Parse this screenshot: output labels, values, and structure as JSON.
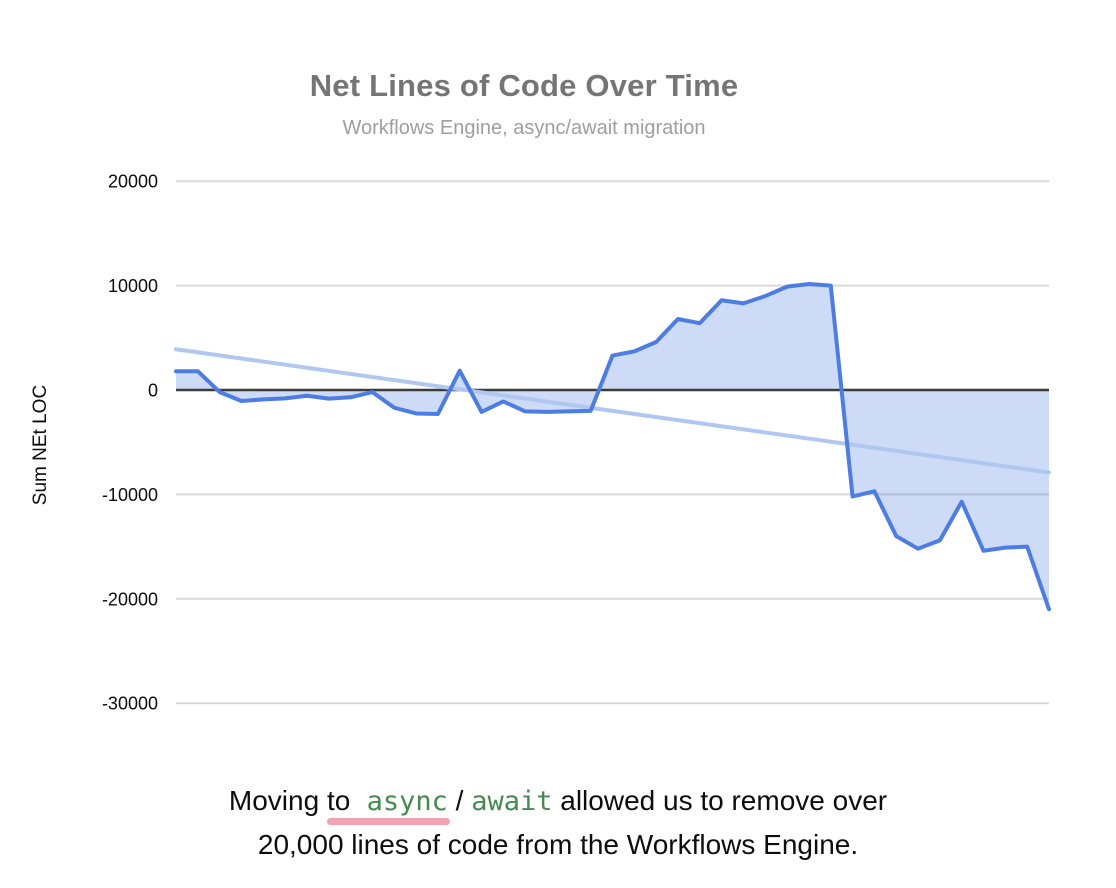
{
  "chart_data": {
    "type": "area",
    "title": "Net Lines of Code Over Time",
    "subtitle": "Workflows Engine, async/await migration",
    "xlabel": "",
    "ylabel": "Sum NEt LOC",
    "ylim": [
      -30000,
      20000
    ],
    "yticks": [
      20000,
      10000,
      0,
      -10000,
      -20000,
      -30000
    ],
    "xticks": [],
    "baseline": 0,
    "grid": "horizontal",
    "legend": "none",
    "series": [
      {
        "name": "Sum NEt LOC",
        "values": [
          1800,
          1800,
          -200,
          -1050,
          -900,
          -800,
          -550,
          -830,
          -700,
          -200,
          -1700,
          -2250,
          -2300,
          1850,
          -2100,
          -1100,
          -2050,
          -2100,
          -2050,
          -2000,
          3300,
          3700,
          4600,
          6800,
          6400,
          8600,
          8300,
          9000,
          9900,
          10150,
          10000,
          -10200,
          -9700,
          -14000,
          -15200,
          -14400,
          -10700,
          -15400,
          -15100,
          -15000,
          -21000
        ]
      }
    ],
    "trendline": {
      "description": "linear trend of Sum NEt LOC",
      "start": 3900,
      "end": -7900
    }
  },
  "caption": {
    "pre": "Moving ",
    "underlined_word": "to",
    "code1": " async",
    "separator": " / ",
    "code2": "await",
    "post": " allowed us to remove over",
    "line2": "20,000 lines of code from the Workflows Engine."
  },
  "colors": {
    "series_line": "#4d7ce2",
    "series_fill": "#cddaf7",
    "trendline": "#b0c7f2",
    "gridline": "#d9d9d9",
    "zero_axis": "#3c3c3c",
    "title_text": "#757575",
    "subtitle_text": "#9e9e9e",
    "caption_text": "#0d0d0d",
    "code_green": "#468a4f",
    "underline_pink": "#f2a3b3"
  }
}
